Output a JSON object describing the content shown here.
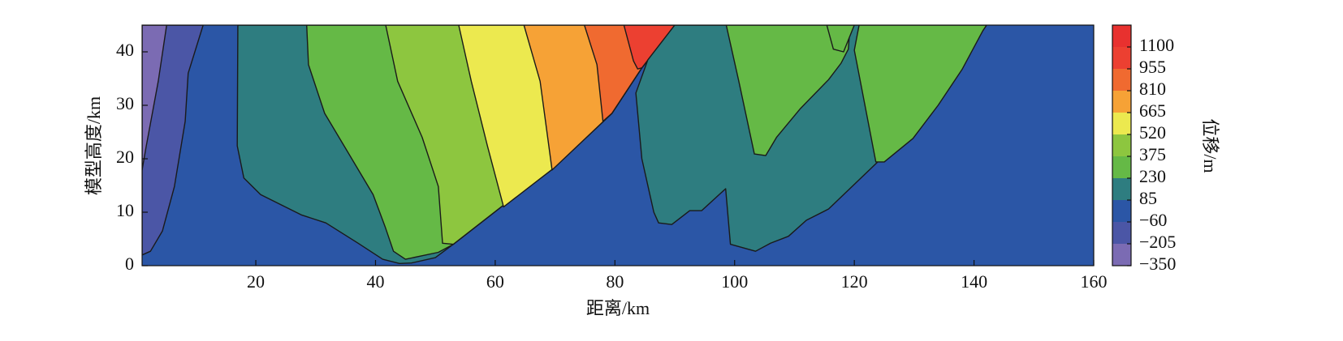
{
  "chart_data": {
    "type": "contour",
    "x_label": "距离/km",
    "y_label": "模型高度/km",
    "xlim": [
      1,
      160
    ],
    "ylim": [
      0,
      45
    ],
    "xticks": [
      20,
      40,
      60,
      80,
      100,
      120,
      140,
      160
    ],
    "yticks": [
      0,
      10,
      20,
      30,
      40
    ],
    "background_level": 2,
    "regions": [
      {
        "level": 1,
        "x": [
          1,
          11.2,
          8.7,
          8.2,
          6.4,
          4.4,
          2.4,
          1
        ],
        "y": [
          45,
          45,
          36,
          27,
          14.8,
          6.5,
          2.7,
          2
        ]
      },
      {
        "level": 0,
        "x": [
          1,
          5.1,
          3.7,
          1.7,
          1
        ],
        "y": [
          45,
          45,
          34.5,
          22.4,
          17.9
        ]
      },
      {
        "level": 3,
        "x": [
          17,
          16.9,
          18,
          20.8,
          27.6,
          31.7,
          37.1,
          41.2,
          44,
          46,
          50,
          53,
          61,
          69.5,
          79.5,
          84.5,
          90
        ],
        "y": [
          45,
          22.4,
          16.4,
          13.3,
          9.5,
          8,
          4.2,
          1.2,
          0.4,
          0.5,
          1.5,
          4,
          11,
          18,
          28.5,
          37,
          45
        ]
      },
      {
        "level": 4,
        "x": [
          28.5,
          28.8,
          31.5,
          35.5,
          39.6,
          41.6,
          43,
          45,
          50.5,
          53,
          61,
          69.5,
          79.5,
          84.5,
          90
        ],
        "y": [
          45,
          37.6,
          28.5,
          21,
          13.3,
          7.3,
          2.7,
          1.2,
          2.5,
          4,
          11,
          18,
          28.5,
          37,
          45
        ]
      },
      {
        "level": 5,
        "x": [
          41.7,
          43.7,
          47.8,
          50.5,
          51.2,
          53,
          61,
          69.5,
          79.5,
          84.5,
          90
        ],
        "y": [
          45,
          34.5,
          24,
          14.8,
          4.2,
          4,
          11,
          18,
          28.5,
          37,
          45
        ]
      },
      {
        "level": 6,
        "x": [
          53.9,
          56,
          58.7,
          61.4,
          69.5,
          79.5,
          84.5,
          90
        ],
        "y": [
          45,
          34.5,
          22.4,
          11,
          18,
          28.5,
          37,
          45
        ]
      },
      {
        "level": 7,
        "x": [
          64.8,
          67.5,
          69.5,
          79.5,
          84.5,
          90
        ],
        "y": [
          45,
          34.5,
          17.9,
          28.5,
          37,
          45
        ]
      },
      {
        "level": 8,
        "x": [
          74.9,
          77,
          78,
          79.5,
          84.5,
          90
        ],
        "y": [
          45,
          37.6,
          27,
          28.5,
          37,
          45
        ]
      },
      {
        "level": 9,
        "x": [
          81.5,
          83.1,
          83.8,
          84.5,
          90
        ],
        "y": [
          45,
          38.3,
          36.8,
          37,
          45
        ]
      },
      {
        "level": 3,
        "x": [
          90,
          85.5,
          83.5,
          84.5,
          86.5,
          87.3,
          89.5,
          92.5,
          94.5,
          98.5,
          99.3,
          103.5,
          106,
          109,
          112,
          115.7,
          123.9,
          129.3,
          133.3,
          138,
          142.1
        ],
        "y": [
          45,
          38.5,
          32.3,
          20,
          10,
          8,
          7.7,
          10.3,
          10.3,
          14.4,
          4,
          2.7,
          4.2,
          5.5,
          8.5,
          10.6,
          19.4,
          24.7,
          30,
          38.3,
          45
        ]
      },
      {
        "level": 4,
        "x": [
          98.6,
          100.7,
          103.3,
          105.2,
          107,
          111,
          115.7,
          117.8,
          119,
          119.3
        ],
        "y": [
          45,
          34.5,
          20.9,
          20.6,
          24,
          29.4,
          34.8,
          37.9,
          40.5,
          45
        ]
      },
      {
        "level": 4,
        "x": [
          120.8,
          120,
          120.4,
          123.6,
          125,
          129.8,
          134,
          138,
          141.5,
          142.1
        ],
        "y": [
          45,
          40.3,
          38,
          19.4,
          19.4,
          23.8,
          30,
          36.7,
          44,
          45
        ]
      },
      {
        "level": 4,
        "x": [
          115.4,
          116.5,
          118.2,
          120
        ],
        "y": [
          45,
          40.5,
          40,
          45
        ]
      }
    ],
    "colorbar": {
      "label": "位移/m",
      "lim": [
        -350,
        1245
      ],
      "ticks": [
        {
          "value": -350,
          "label": "−350"
        },
        {
          "value": -205,
          "label": "−205"
        },
        {
          "value": -60,
          "label": "−60"
        },
        85,
        230,
        375,
        520,
        665,
        810,
        955,
        1100
      ],
      "colors": [
        "#7b6bb3",
        "#4b56a6",
        "#2b56a6",
        "#2e7d80",
        "#65b946",
        "#8dc63f",
        "#ece94f",
        "#f6a236",
        "#f06a30",
        "#ec4031",
        "#e8312f"
      ]
    }
  }
}
